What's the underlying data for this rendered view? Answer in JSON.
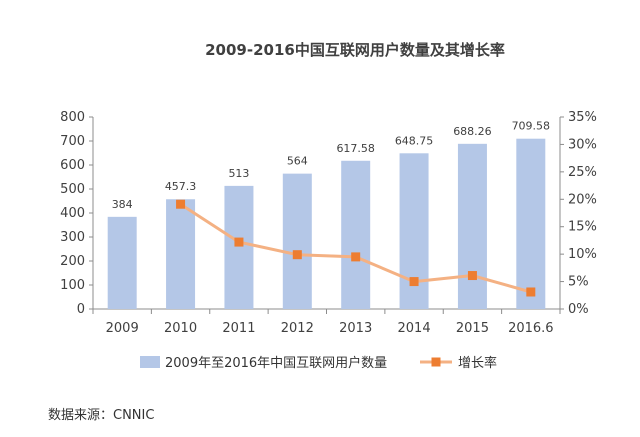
{
  "chart_data": {
    "type": "bar",
    "title": "2009-2016中国互联网用户数量及其增长率",
    "categories": [
      "2009",
      "2010",
      "2011",
      "2012",
      "2013",
      "2014",
      "2015",
      "2016.6"
    ],
    "series": [
      {
        "name": "2009年至2016年中国互联网用户数量",
        "type": "bar",
        "axis": "left",
        "values": [
          384,
          457.3,
          513,
          564,
          617.58,
          648.75,
          688.26,
          709.58
        ],
        "data_labels": [
          "384",
          "457.3",
          "513",
          "564",
          "617.58",
          "648.75",
          "688.26",
          "709.58"
        ],
        "color": "#b4c7e7"
      },
      {
        "name": "增长率",
        "type": "line",
        "axis": "right",
        "values": [
          null,
          19.1,
          12.2,
          9.9,
          9.5,
          5.0,
          6.1,
          3.1
        ],
        "unit": "%",
        "color": "#f4b183",
        "marker_color": "#ed7d31"
      }
    ],
    "y_left": {
      "min": 0,
      "max": 800,
      "ticks": [
        "0",
        "100",
        "200",
        "300",
        "400",
        "500",
        "600",
        "700",
        "800"
      ]
    },
    "y_right": {
      "min": 0,
      "max": 35,
      "ticks": [
        "0%",
        "5%",
        "10%",
        "15%",
        "20%",
        "25%",
        "30%",
        "35%"
      ]
    },
    "legend": "bottom",
    "grid": false
  },
  "source_text": "数据来源：CNNIC"
}
